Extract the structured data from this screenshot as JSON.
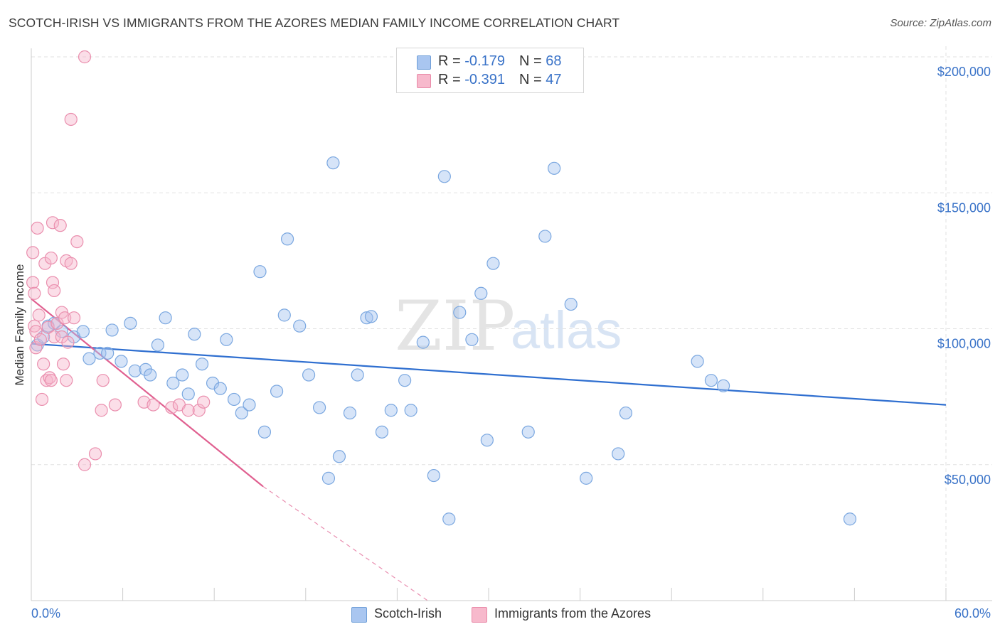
{
  "title": "SCOTCH-IRISH VS IMMIGRANTS FROM THE AZORES MEDIAN FAMILY INCOME CORRELATION CHART",
  "source": "Source: ZipAtlas.com",
  "watermark": {
    "zip": "ZIP",
    "atlas": "atlas"
  },
  "legend": {
    "rows": [
      {
        "r_label": "R = ",
        "r_value": "-0.179",
        "n_label": "N = ",
        "n_value": "68",
        "color": "#a9c6f0",
        "border": "#6f9fd8"
      },
      {
        "r_label": "R = ",
        "r_value": "-0.391",
        "n_label": "N = ",
        "n_value": "47",
        "color": "#f7b9cc",
        "border": "#e98aa8"
      }
    ]
  },
  "bottom_legend": {
    "series1": "Scotch-Irish",
    "series2": "Immigrants from the Azores"
  },
  "chart_data": {
    "type": "scatter",
    "xlabel": "",
    "ylabel": "Median Family Income",
    "xlim": [
      0,
      60
    ],
    "ylim": [
      0,
      200000
    ],
    "x_tick_labels": [
      "0.0%",
      "60.0%"
    ],
    "y_tick_labels": [
      "$50,000",
      "$100,000",
      "$150,000",
      "$200,000"
    ],
    "y_tick_values": [
      50000,
      100000,
      150000,
      200000
    ],
    "grid": true,
    "colors": {
      "series1_fill": "rgba(164,196,240,0.45)",
      "series1_stroke": "#7aa7e0",
      "series1_line": "#2f6fd0",
      "series2_fill": "rgba(247,182,204,0.45)",
      "series2_stroke": "#ea8fae",
      "series2_line": "#e06090",
      "axis_label": "#3a73c8",
      "grid": "#e2e2e2"
    },
    "series": [
      {
        "name": "Scotch-Irish",
        "trend": {
          "x": [
            0.0,
            60.0
          ],
          "y": [
            94500,
            72000
          ]
        },
        "points": [
          [
            0.4,
            94000
          ],
          [
            0.8,
            97000
          ],
          [
            1.1,
            101000
          ],
          [
            1.5,
            102000
          ],
          [
            2.0,
            99000
          ],
          [
            2.8,
            97000
          ],
          [
            3.4,
            99000
          ],
          [
            3.8,
            89000
          ],
          [
            4.5,
            91000
          ],
          [
            5.0,
            91000
          ],
          [
            5.3,
            99500
          ],
          [
            5.9,
            88000
          ],
          [
            6.5,
            102000
          ],
          [
            6.8,
            84500
          ],
          [
            7.5,
            85000
          ],
          [
            7.8,
            83000
          ],
          [
            8.3,
            94000
          ],
          [
            8.8,
            104000
          ],
          [
            9.3,
            80000
          ],
          [
            9.9,
            83000
          ],
          [
            10.3,
            76000
          ],
          [
            10.7,
            98000
          ],
          [
            11.2,
            87000
          ],
          [
            11.9,
            80000
          ],
          [
            12.4,
            78000
          ],
          [
            12.8,
            96000
          ],
          [
            13.3,
            74000
          ],
          [
            13.8,
            69000
          ],
          [
            14.3,
            72000
          ],
          [
            15.0,
            121000
          ],
          [
            15.3,
            62000
          ],
          [
            16.1,
            77000
          ],
          [
            16.6,
            105000
          ],
          [
            16.8,
            133000
          ],
          [
            17.6,
            101000
          ],
          [
            18.2,
            83000
          ],
          [
            18.9,
            71000
          ],
          [
            19.5,
            45000
          ],
          [
            19.8,
            161000
          ],
          [
            20.2,
            53000
          ],
          [
            20.9,
            69000
          ],
          [
            21.4,
            83000
          ],
          [
            22.0,
            104000
          ],
          [
            22.3,
            104500
          ],
          [
            23.0,
            62000
          ],
          [
            23.6,
            70000
          ],
          [
            24.5,
            81000
          ],
          [
            24.9,
            70000
          ],
          [
            25.7,
            95000
          ],
          [
            26.4,
            46000
          ],
          [
            27.1,
            156000
          ],
          [
            27.4,
            30000
          ],
          [
            28.1,
            106000
          ],
          [
            28.9,
            96000
          ],
          [
            29.5,
            113000
          ],
          [
            29.9,
            59000
          ],
          [
            30.3,
            124000
          ],
          [
            32.6,
            62000
          ],
          [
            33.7,
            134000
          ],
          [
            34.3,
            159000
          ],
          [
            35.4,
            109000
          ],
          [
            36.4,
            45000
          ],
          [
            38.5,
            54000
          ],
          [
            39.0,
            69000
          ],
          [
            43.7,
            88000
          ],
          [
            44.6,
            81000
          ],
          [
            45.4,
            79000
          ],
          [
            53.7,
            30000
          ]
        ]
      },
      {
        "name": "Immigrants from the Azores",
        "trend": {
          "x": [
            0.0,
            15.2
          ],
          "y": [
            111000,
            42000
          ]
        },
        "trend_dashed": {
          "x": [
            15.2,
            26.0
          ],
          "y": [
            42000,
            -5000
          ]
        },
        "points": [
          [
            0.1,
            128000
          ],
          [
            0.1,
            117000
          ],
          [
            0.2,
            113000
          ],
          [
            0.2,
            101000
          ],
          [
            0.3,
            93000
          ],
          [
            0.3,
            99000
          ],
          [
            0.4,
            137000
          ],
          [
            0.5,
            105000
          ],
          [
            0.6,
            96000
          ],
          [
            0.7,
            74000
          ],
          [
            0.8,
            87000
          ],
          [
            0.9,
            124000
          ],
          [
            1.0,
            81000
          ],
          [
            1.1,
            100500
          ],
          [
            1.2,
            82000
          ],
          [
            1.3,
            126000
          ],
          [
            1.3,
            81000
          ],
          [
            1.4,
            117000
          ],
          [
            1.4,
            139000
          ],
          [
            1.5,
            114000
          ],
          [
            1.5,
            97000
          ],
          [
            1.7,
            102000
          ],
          [
            1.9,
            138000
          ],
          [
            2.0,
            106000
          ],
          [
            2.0,
            97000
          ],
          [
            2.1,
            87000
          ],
          [
            2.2,
            104000
          ],
          [
            2.3,
            125000
          ],
          [
            2.3,
            81000
          ],
          [
            2.4,
            95000
          ],
          [
            2.6,
            124000
          ],
          [
            2.6,
            177000
          ],
          [
            2.8,
            104000
          ],
          [
            3.0,
            132000
          ],
          [
            3.5,
            200000
          ],
          [
            3.5,
            50000
          ],
          [
            4.2,
            54000
          ],
          [
            4.6,
            70000
          ],
          [
            4.7,
            81000
          ],
          [
            5.5,
            72000
          ],
          [
            7.4,
            73000
          ],
          [
            8.0,
            72000
          ],
          [
            9.2,
            71000
          ],
          [
            9.7,
            72000
          ],
          [
            10.3,
            70000
          ],
          [
            11.0,
            70000
          ],
          [
            11.3,
            73000
          ]
        ]
      }
    ]
  }
}
